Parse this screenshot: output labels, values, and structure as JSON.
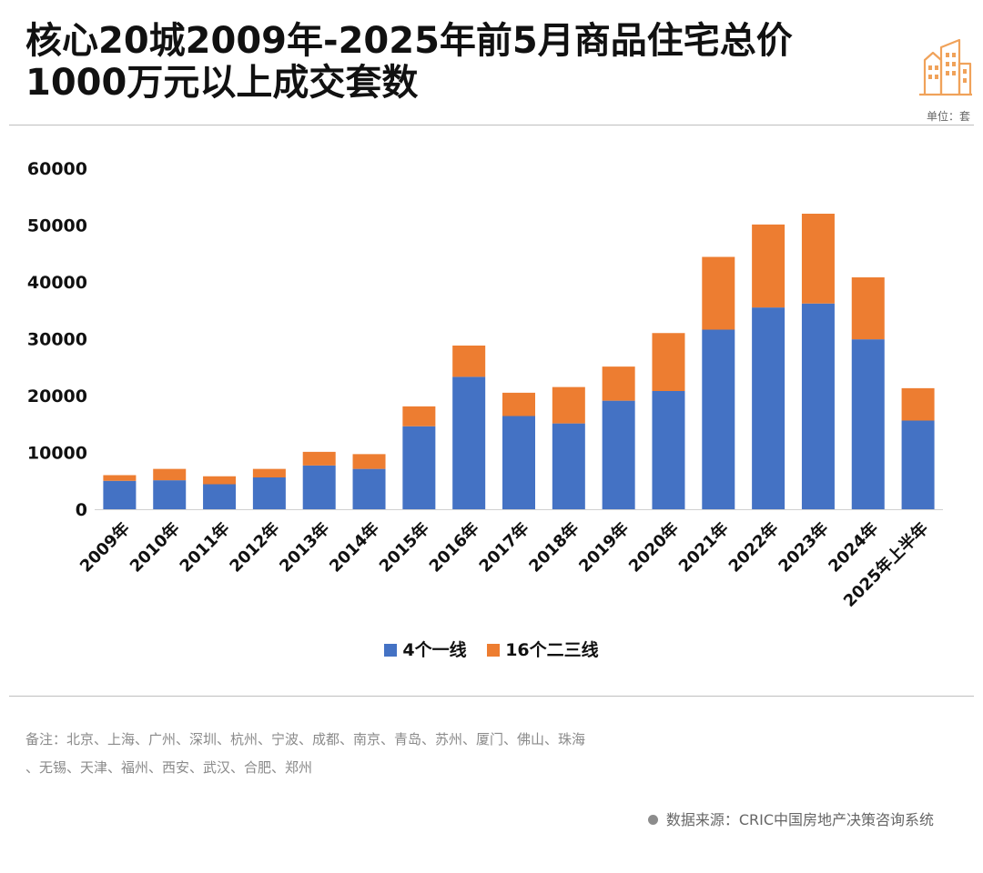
{
  "header": {
    "title_line1": "核心20城2009年-2025年前5月商品住宅总价",
    "title_line2": "1000万元以上成交套数",
    "unit": "单位：套",
    "logo_icon": "city-buildings-icon"
  },
  "colors": {
    "series_first_tier": "#4472c4",
    "series_second_tier": "#ed7d31",
    "logo": "#f0a25a"
  },
  "chart_data": {
    "type": "bar",
    "stacked": true,
    "categories": [
      "2009年",
      "2010年",
      "2011年",
      "2012年",
      "2013年",
      "2014年",
      "2015年",
      "2016年",
      "2017年",
      "2018年",
      "2019年",
      "2020年",
      "2021年",
      "2022年",
      "2023年",
      "2024年",
      "2025年上半年"
    ],
    "series": [
      {
        "name": "4个一线",
        "color": "#4472c4",
        "values": [
          5000,
          5100,
          4400,
          5600,
          7700,
          7100,
          14600,
          23300,
          16400,
          15100,
          19100,
          20800,
          31600,
          35500,
          36200,
          29900,
          15600
        ]
      },
      {
        "name": "16个二三线",
        "color": "#ed7d31",
        "values": [
          1000,
          2000,
          1400,
          1500,
          2400,
          2600,
          3500,
          5500,
          4100,
          6400,
          6000,
          10200,
          12800,
          14600,
          15800,
          10900,
          5700
        ]
      }
    ],
    "ylim": [
      0,
      60000
    ],
    "yticks": [
      "0",
      "10000",
      "20000",
      "30000",
      "40000",
      "50000",
      "60000"
    ],
    "grid": false,
    "legend_position": "bottom"
  },
  "notes": {
    "line1": "备注：北京、上海、广州、深圳、杭州、宁波、成都、南京、青岛、苏州、厦门、佛山、珠海",
    "line2": "、无锡、天津、福州、西安、武汉、合肥、郑州"
  },
  "source": {
    "text": "数据来源：CRIC中国房地产决策咨询系统"
  }
}
